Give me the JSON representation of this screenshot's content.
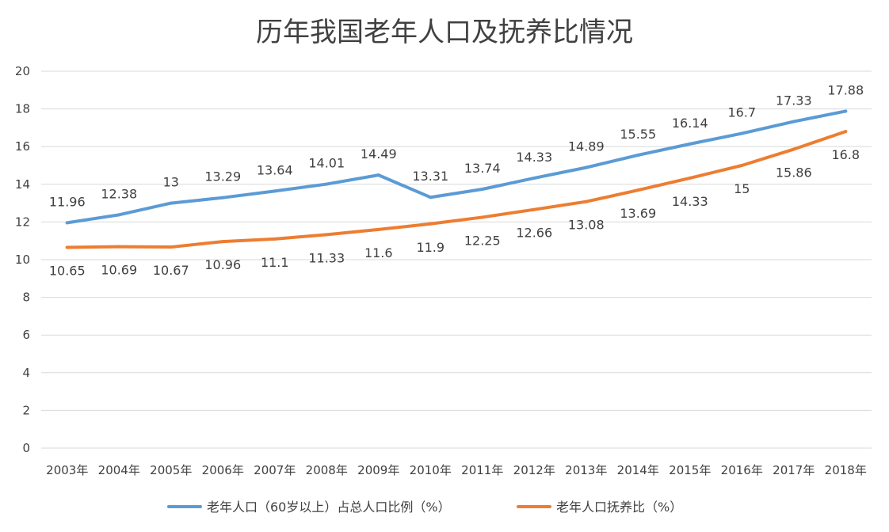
{
  "chart_data": {
    "type": "line",
    "title": "历年我国老年人口及抚养比情况",
    "xlabel": "",
    "ylabel": "",
    "ylim": [
      0,
      20
    ],
    "yticks": [
      0,
      2,
      4,
      6,
      8,
      10,
      12,
      14,
      16,
      18,
      20
    ],
    "grid": true,
    "legend_position": "bottom",
    "categories": [
      "2003年",
      "2004年",
      "2005年",
      "2006年",
      "2007年",
      "2008年",
      "2009年",
      "2010年",
      "2011年",
      "2012年",
      "2013年",
      "2014年",
      "2015年",
      "2016年",
      "2017年",
      "2018年"
    ],
    "series": [
      {
        "name": "老年人口（60岁以上）占总人口比例（%）",
        "color": "#5B9BD5",
        "values": [
          11.96,
          12.38,
          13,
          13.29,
          13.64,
          14.01,
          14.49,
          13.31,
          13.74,
          14.33,
          14.89,
          15.55,
          16.14,
          16.7,
          17.33,
          17.88
        ],
        "labels": [
          "11.96",
          "12.38",
          "13",
          "13.29",
          "13.64",
          "14.01",
          "14.49",
          "13.31",
          "13.74",
          "14.33",
          "14.89",
          "15.55",
          "16.14",
          "16.7",
          "17.33",
          "17.88"
        ]
      },
      {
        "name": "老年人口抚养比（%）",
        "color": "#ED7D31",
        "values": [
          10.65,
          10.69,
          10.67,
          10.96,
          11.1,
          11.33,
          11.6,
          11.9,
          12.25,
          12.66,
          13.08,
          13.69,
          14.33,
          15,
          15.86,
          16.8
        ],
        "labels": [
          "10.65",
          "10.69",
          "10.67",
          "10.96",
          "11.1",
          "11.33",
          "11.6",
          "11.9",
          "12.25",
          "12.66",
          "13.08",
          "13.69",
          "14.33",
          "15",
          "15.86",
          "16.8"
        ]
      }
    ]
  },
  "colors": {
    "grid": "#D9D9D9",
    "text": "#404040",
    "background": "#FFFFFF"
  }
}
